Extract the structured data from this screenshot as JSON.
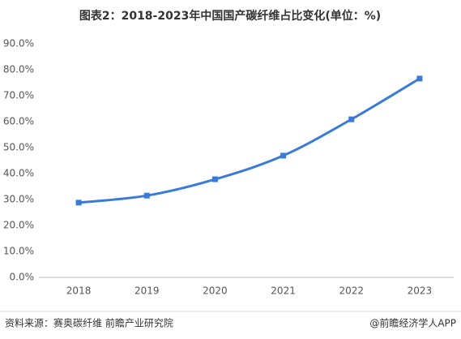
{
  "chart_data": {
    "type": "line",
    "title": "图表2：2018-2023年中国国产碳纤维占比变化(单位：%)",
    "categories": [
      "2018",
      "2019",
      "2020",
      "2021",
      "2022",
      "2023"
    ],
    "series": [
      {
        "name": "国产碳纤维占比",
        "color": "#3a7bd5",
        "values": [
          28.8,
          31.5,
          37.8,
          46.9,
          60.9,
          76.6
        ]
      }
    ],
    "ylim": [
      0,
      90
    ],
    "yticks": [
      {
        "value": 0,
        "label": "0.0%"
      },
      {
        "value": 10,
        "label": "10.0%"
      },
      {
        "value": 20,
        "label": "20.0%"
      },
      {
        "value": 30,
        "label": "30.0%"
      },
      {
        "value": 40,
        "label": "40.0%"
      },
      {
        "value": 50,
        "label": "50.0%"
      },
      {
        "value": 60,
        "label": "60.0%"
      },
      {
        "value": 70,
        "label": "70.0%"
      },
      {
        "value": 80,
        "label": "80.0%"
      },
      {
        "value": 90,
        "label": "90.0%"
      }
    ],
    "grid": false,
    "source": "资料来源：赛奥碳纤维 前瞻产业研究院",
    "credit": "@前瞻经济学人APP"
  }
}
